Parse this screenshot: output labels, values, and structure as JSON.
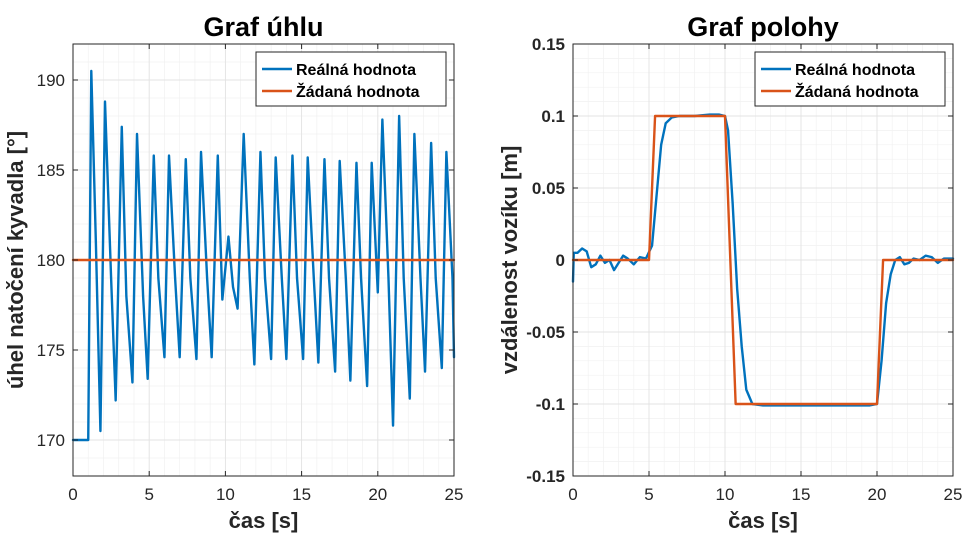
{
  "chart_data": [
    {
      "type": "line",
      "title": "Graf úhlu",
      "xlabel": "čas [s]",
      "ylabel": "úhel natočení kyvadla [°]",
      "xlim": [
        0,
        25
      ],
      "ylim": [
        168,
        192
      ],
      "xticks": [
        0,
        5,
        10,
        15,
        20,
        25
      ],
      "yticks": [
        170,
        175,
        180,
        185,
        190
      ],
      "grid": true,
      "minor_grid": true,
      "legend_position": "top-right",
      "series": [
        {
          "name": "Reálná hodnota",
          "color": "#0072BD",
          "x": [
            0,
            0.9,
            1.0,
            1.2,
            1.5,
            1.8,
            2.1,
            2.5,
            2.8,
            3.2,
            3.5,
            3.9,
            4.2,
            4.6,
            4.9,
            5.3,
            5.6,
            6.0,
            6.3,
            6.7,
            7.0,
            7.4,
            7.7,
            8.1,
            8.4,
            8.8,
            9.1,
            9.5,
            9.8,
            10.2,
            10.5,
            10.8,
            11.2,
            11.6,
            11.9,
            12.3,
            12.6,
            13.0,
            13.3,
            13.7,
            14.0,
            14.4,
            14.7,
            15.1,
            15.4,
            15.8,
            16.1,
            16.5,
            16.8,
            17.2,
            17.5,
            17.9,
            18.2,
            18.6,
            18.9,
            19.3,
            19.6,
            20.0,
            20.3,
            20.7,
            21.0,
            21.4,
            21.7,
            22.1,
            22.4,
            22.8,
            23.1,
            23.5,
            23.8,
            24.2,
            24.5,
            24.9,
            25.0
          ],
          "values": [
            170,
            170,
            170,
            190.5,
            181,
            170.5,
            188.8,
            179,
            172.2,
            187.4,
            178,
            173.2,
            187,
            178,
            173.4,
            185.8,
            179,
            174.6,
            185.8,
            179,
            174.6,
            185.6,
            179,
            174.5,
            186,
            179,
            174.6,
            185.8,
            177.8,
            181.3,
            178.5,
            177.3,
            187,
            179,
            174.2,
            186,
            179,
            174.5,
            185.7,
            179,
            174.5,
            185.8,
            179,
            174.5,
            185.7,
            179,
            174.3,
            185.6,
            179,
            173.8,
            185.5,
            179,
            173.3,
            185.4,
            179,
            173,
            185.4,
            178.2,
            187.8,
            179,
            170.8,
            188,
            179,
            172.3,
            187,
            179,
            173.8,
            186.5,
            179,
            174,
            186,
            179,
            174.6
          ]
        },
        {
          "name": "Žádaná hodnota",
          "color": "#D95319",
          "x": [
            0,
            25
          ],
          "values": [
            180,
            180
          ]
        }
      ]
    },
    {
      "type": "line",
      "title": "Graf polohy",
      "xlabel": "čas [s]",
      "ylabel": "vzdálenost vozíku [m]",
      "xlim": [
        0,
        25
      ],
      "ylim": [
        -0.15,
        0.15
      ],
      "xticks": [
        0,
        5,
        10,
        15,
        20,
        25
      ],
      "yticks": [
        -0.15,
        -0.1,
        -0.05,
        0,
        0.05,
        0.1,
        0.15
      ],
      "grid": true,
      "minor_grid": true,
      "legend_position": "top-right",
      "series": [
        {
          "name": "Reálná hodnota",
          "color": "#0072BD",
          "x": [
            0,
            0.05,
            0.3,
            0.6,
            0.9,
            1.2,
            1.5,
            1.8,
            2.1,
            2.4,
            2.7,
            3.0,
            3.3,
            3.6,
            4.0,
            4.4,
            4.8,
            5.2,
            5.5,
            5.8,
            6.1,
            6.5,
            7.0,
            8.0,
            9.0,
            9.6,
            10.0,
            10.2,
            10.5,
            10.8,
            11.1,
            11.4,
            11.8,
            12.5,
            14.0,
            16.0,
            18.0,
            19.5,
            20.0,
            20.3,
            20.6,
            20.9,
            21.2,
            21.5,
            21.8,
            22.1,
            22.4,
            22.8,
            23.2,
            23.6,
            24.0,
            24.4,
            25.0
          ],
          "values": [
            -0.015,
            0.005,
            0.005,
            0.008,
            0.006,
            -0.005,
            -0.003,
            0.003,
            -0.002,
            0.0,
            -0.007,
            -0.002,
            0.003,
            0.001,
            -0.003,
            0.002,
            0.001,
            0.01,
            0.045,
            0.08,
            0.095,
            0.099,
            0.1,
            0.1,
            0.101,
            0.101,
            0.1,
            0.09,
            0.04,
            -0.02,
            -0.06,
            -0.09,
            -0.1,
            -0.101,
            -0.101,
            -0.101,
            -0.101,
            -0.101,
            -0.1,
            -0.07,
            -0.03,
            -0.01,
            0.0,
            0.002,
            -0.003,
            -0.002,
            0.001,
            0.0,
            0.003,
            0.002,
            -0.002,
            0.001,
            0.001
          ]
        },
        {
          "name": "Žádaná hodnota",
          "color": "#D95319",
          "x": [
            0,
            5.0,
            5.4,
            10.0,
            10.7,
            20.0,
            20.4,
            25.0
          ],
          "values": [
            0,
            0,
            0.1,
            0.1,
            -0.1,
            -0.1,
            0,
            0
          ]
        }
      ]
    }
  ]
}
